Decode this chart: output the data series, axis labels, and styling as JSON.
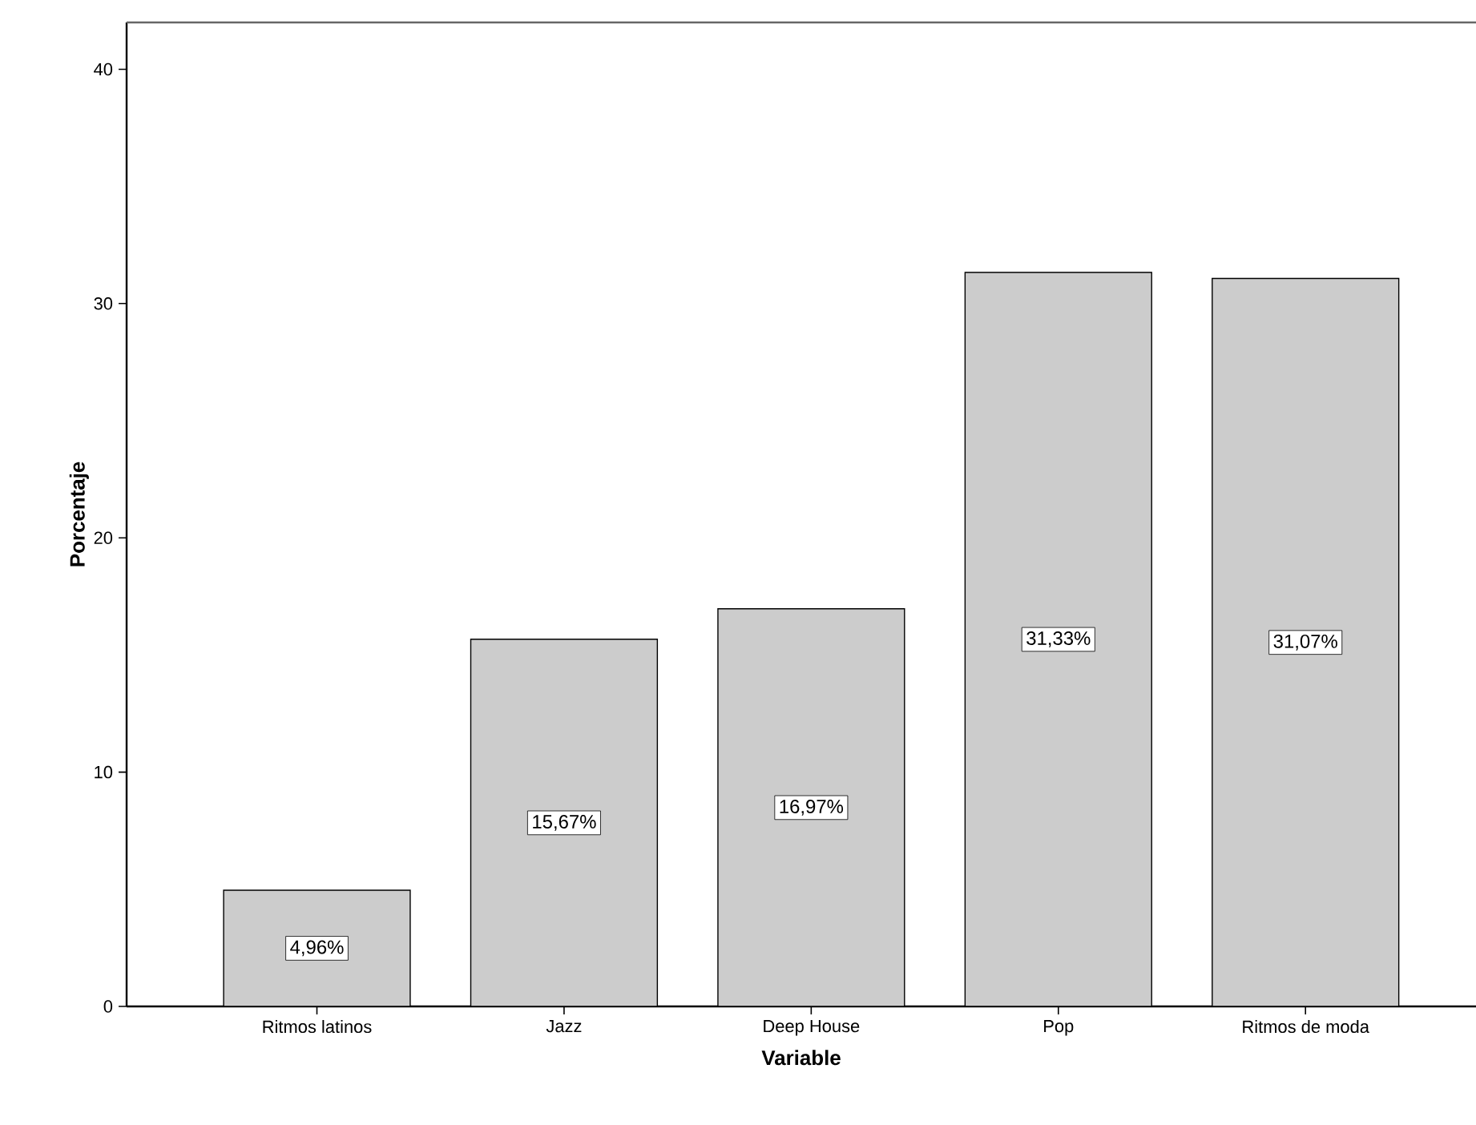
{
  "chart_data": {
    "type": "bar",
    "xlabel": "Variable",
    "ylabel": "Porcentaje",
    "categories": [
      "Ritmos latinos",
      "Jazz",
      "Deep House",
      "Pop",
      "Ritmos de moda"
    ],
    "values": [
      4.96,
      15.67,
      16.97,
      31.33,
      31.07
    ],
    "value_labels": [
      "4,96%",
      "15,67%",
      "16,97%",
      "31,33%",
      "31,07%"
    ],
    "color": "#cccccc",
    "ylim": [
      0,
      42
    ],
    "yticks": [
      0,
      10,
      20,
      30,
      40
    ]
  }
}
